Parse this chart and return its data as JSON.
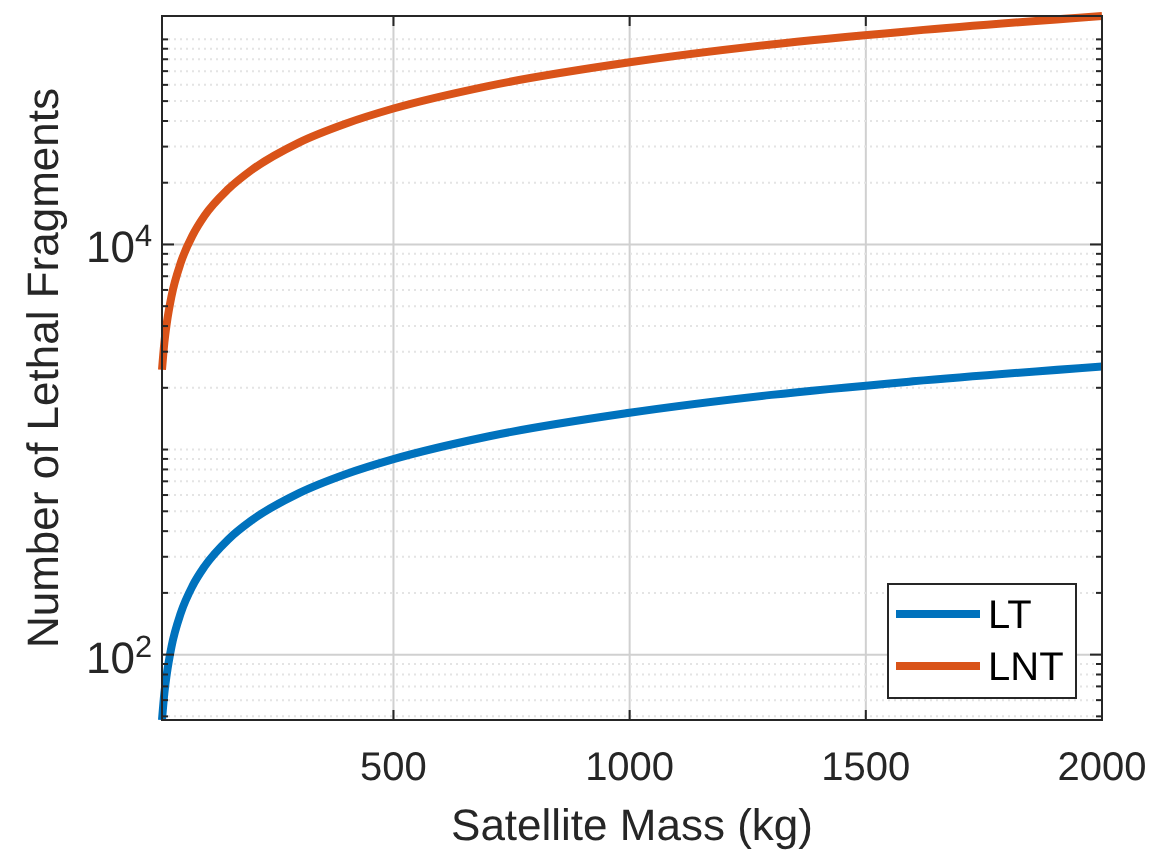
{
  "chart_data": {
    "type": "line",
    "xlabel": "Satellite Mass (kg)",
    "ylabel": "Number of Lethal Fragments",
    "log": "y",
    "grid": true,
    "legend": "bottom right",
    "line_style": "solid",
    "x": [
      10,
      15,
      20,
      30,
      50,
      75,
      100,
      150,
      200,
      300,
      400,
      500,
      700,
      1000,
      1300,
      1600,
      2000
    ],
    "series": [
      {
        "name": "LT",
        "color": "#0072bd",
        "values": [
          48,
          65,
          80,
          109,
          160,
          217,
          269,
          364,
          452,
          613,
          760,
          898,
          1158,
          1511,
          1847,
          2151,
          2542
        ]
      },
      {
        "name": "LNT",
        "color": "#d95319",
        "values": [
          2450,
          3320,
          4110,
          5580,
          8180,
          11100,
          13800,
          18600,
          23100,
          31400,
          38900,
          46000,
          59200,
          77300,
          94500,
          110000,
          130000
        ]
      }
    ],
    "xlim": [
      10,
      2000
    ],
    "xticks": [
      500,
      1000,
      1500,
      2000
    ],
    "ylim": [
      48,
      130000
    ],
    "yticks": [
      {
        "value": 50,
        "label": null
      },
      {
        "value": 60,
        "label": null
      },
      {
        "value": 70,
        "label": null
      },
      {
        "value": 80,
        "label": null
      },
      {
        "value": 90,
        "label": null
      },
      {
        "value": 100,
        "label": "10$^{2}$"
      },
      {
        "value": 200,
        "label": null
      },
      {
        "value": 300,
        "label": null
      },
      {
        "value": 400,
        "label": null
      },
      {
        "value": 500,
        "label": null
      },
      {
        "value": 600,
        "label": null
      },
      {
        "value": 700,
        "label": null
      },
      {
        "value": 800,
        "label": null
      },
      {
        "value": 900,
        "label": null
      },
      {
        "value": 1000,
        "label": null
      },
      {
        "value": 2000,
        "label": null
      },
      {
        "value": 3000,
        "label": null
      },
      {
        "value": 4000,
        "label": null
      },
      {
        "value": 5000,
        "label": null
      },
      {
        "value": 6000,
        "label": null
      },
      {
        "value": 7000,
        "label": null
      },
      {
        "value": 8000,
        "label": null
      },
      {
        "value": 9000,
        "label": null
      },
      {
        "value": 10000,
        "label": "10$^{4}$"
      },
      {
        "value": 20000,
        "label": null
      },
      {
        "value": 30000,
        "label": null
      },
      {
        "value": 40000,
        "label": null
      },
      {
        "value": 50000,
        "label": null
      },
      {
        "value": 60000,
        "label": null
      },
      {
        "value": 70000,
        "label": null
      },
      {
        "value": 80000,
        "label": null
      },
      {
        "value": 90000,
        "label": null
      },
      {
        "value": 100000,
        "label": null
      }
    ]
  }
}
